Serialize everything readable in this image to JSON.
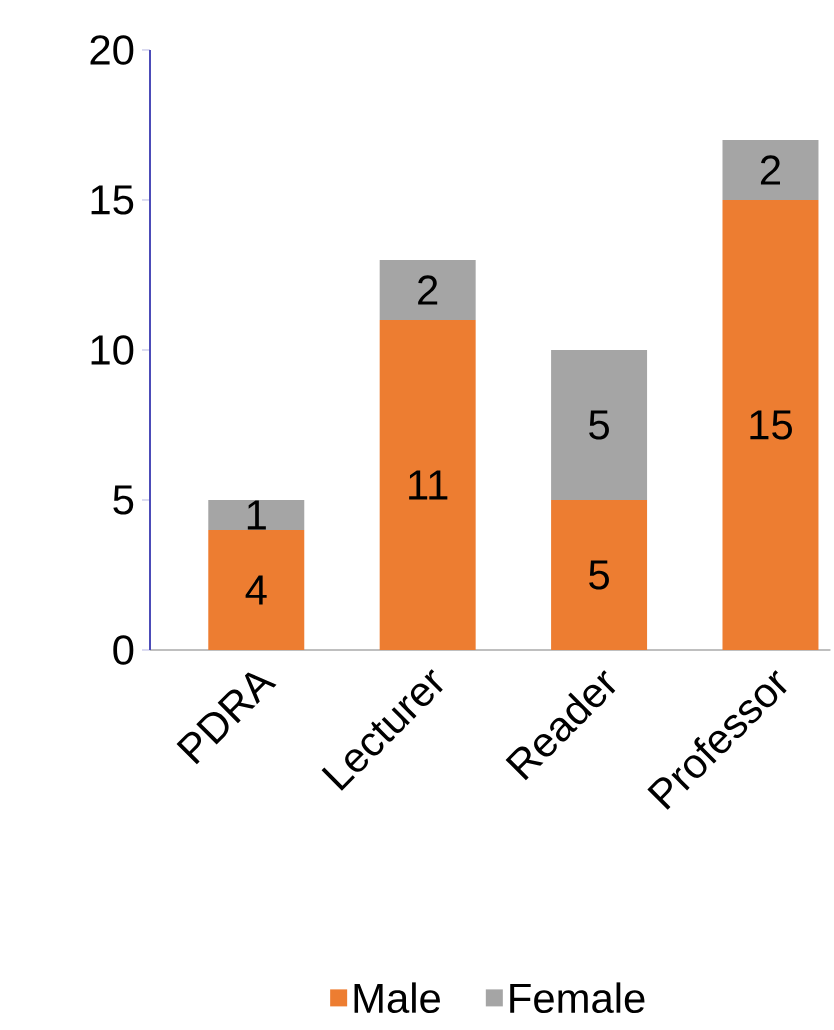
{
  "chart_data": {
    "type": "bar",
    "stacked": true,
    "categories": [
      "PDRA",
      "Lecturer",
      "Reader",
      "Professor"
    ],
    "series": [
      {
        "name": "Male",
        "color": "#ed7d31",
        "values": [
          4,
          11,
          5,
          15
        ]
      },
      {
        "name": "Female",
        "color": "#a5a5a5",
        "values": [
          1,
          2,
          5,
          2
        ]
      }
    ],
    "ylim": [
      0,
      20
    ],
    "yticks": [
      0,
      5,
      10,
      15,
      20
    ],
    "data_labels": true,
    "legend": "bottom",
    "grid": false
  }
}
